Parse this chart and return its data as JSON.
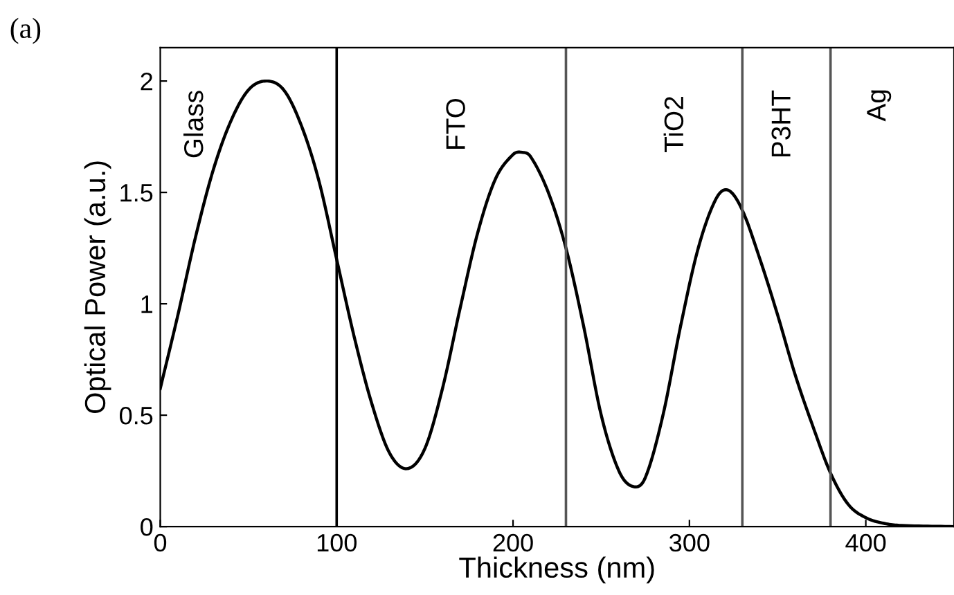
{
  "chart_data": {
    "type": "line",
    "xlabel": "Thickness (nm)",
    "ylabel": "Optical Power (a.u.)",
    "x": [
      0,
      10,
      20,
      30,
      40,
      50,
      60,
      70,
      80,
      90,
      100,
      110,
      120,
      130,
      140,
      150,
      160,
      170,
      180,
      190,
      200,
      205,
      210,
      220,
      230,
      240,
      250,
      260,
      268,
      275,
      285,
      295,
      305,
      315,
      322,
      330,
      340,
      350,
      360,
      370,
      380,
      390,
      400,
      410,
      420,
      450
    ],
    "series": [
      {
        "color": "#000000",
        "values": [
          0.62,
          0.95,
          1.3,
          1.6,
          1.82,
          1.96,
          2.0,
          1.96,
          1.8,
          1.55,
          1.2,
          0.85,
          0.55,
          0.33,
          0.26,
          0.35,
          0.62,
          0.98,
          1.32,
          1.56,
          1.67,
          1.68,
          1.66,
          1.5,
          1.25,
          0.9,
          0.5,
          0.25,
          0.18,
          0.22,
          0.5,
          0.9,
          1.25,
          1.47,
          1.51,
          1.42,
          1.2,
          0.95,
          0.68,
          0.45,
          0.24,
          0.1,
          0.04,
          0.015,
          0.005,
          0
        ]
      }
    ],
    "xlim": [
      0,
      450
    ],
    "ylim": [
      0,
      2.15
    ],
    "xticks": [
      0,
      100,
      200,
      300,
      400
    ],
    "yticks": [
      0,
      0.5,
      1,
      1.5,
      2
    ],
    "ref_lines": [
      {
        "axis": "x",
        "value": 100,
        "color": "#000000"
      },
      {
        "axis": "x",
        "value": 230,
        "color": "#555555"
      },
      {
        "axis": "x",
        "value": 330,
        "color": "#555555"
      },
      {
        "axis": "x",
        "value": 380,
        "color": "#555555"
      }
    ],
    "annotations": [
      "(a)",
      "Glass",
      "FTO",
      "TiO2",
      "P3HT",
      "Ag"
    ],
    "grid": false,
    "legend": false,
    "marker": "none",
    "line_style": "solid"
  }
}
